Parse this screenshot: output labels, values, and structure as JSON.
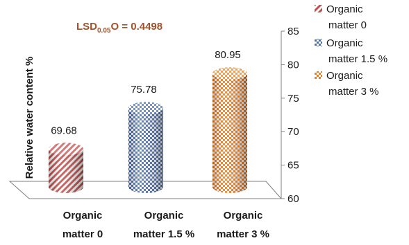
{
  "chart_data": {
    "type": "bar",
    "categories": [
      "Organic matter 0",
      "Organic matter 1.5 %",
      "Organic matter 3 %"
    ],
    "category_lines": [
      [
        "Organic",
        "matter 0"
      ],
      [
        "Organic",
        "matter 1.5 %"
      ],
      [
        "Organic",
        "matter 3 %"
      ]
    ],
    "values": [
      69.68,
      75.78,
      80.95
    ],
    "value_labels": [
      "69.68",
      "75.78",
      "80.95"
    ],
    "ylabel": "Relative water content %",
    "ylim": [
      60,
      85
    ],
    "yticks": [
      "60",
      "65",
      "70",
      "75",
      "80",
      "85"
    ],
    "y_axis_side": "right",
    "shape": "cylinder",
    "annotation": {
      "main": "LSD",
      "sub": "0.05",
      "rest": "O = 0.4498"
    },
    "legend": {
      "placement": "top-right",
      "entries": [
        {
          "lines": [
            "Organic",
            "matter 0"
          ],
          "color": "#c0504d",
          "pattern": "diagonal-stripes"
        },
        {
          "lines": [
            "Organic",
            "matter 1.5 %"
          ],
          "color": "#4f6fa8",
          "pattern": "checker"
        },
        {
          "lines": [
            "Organic",
            "matter 3 %"
          ],
          "color": "#e97e25",
          "pattern": "checker"
        }
      ]
    }
  }
}
